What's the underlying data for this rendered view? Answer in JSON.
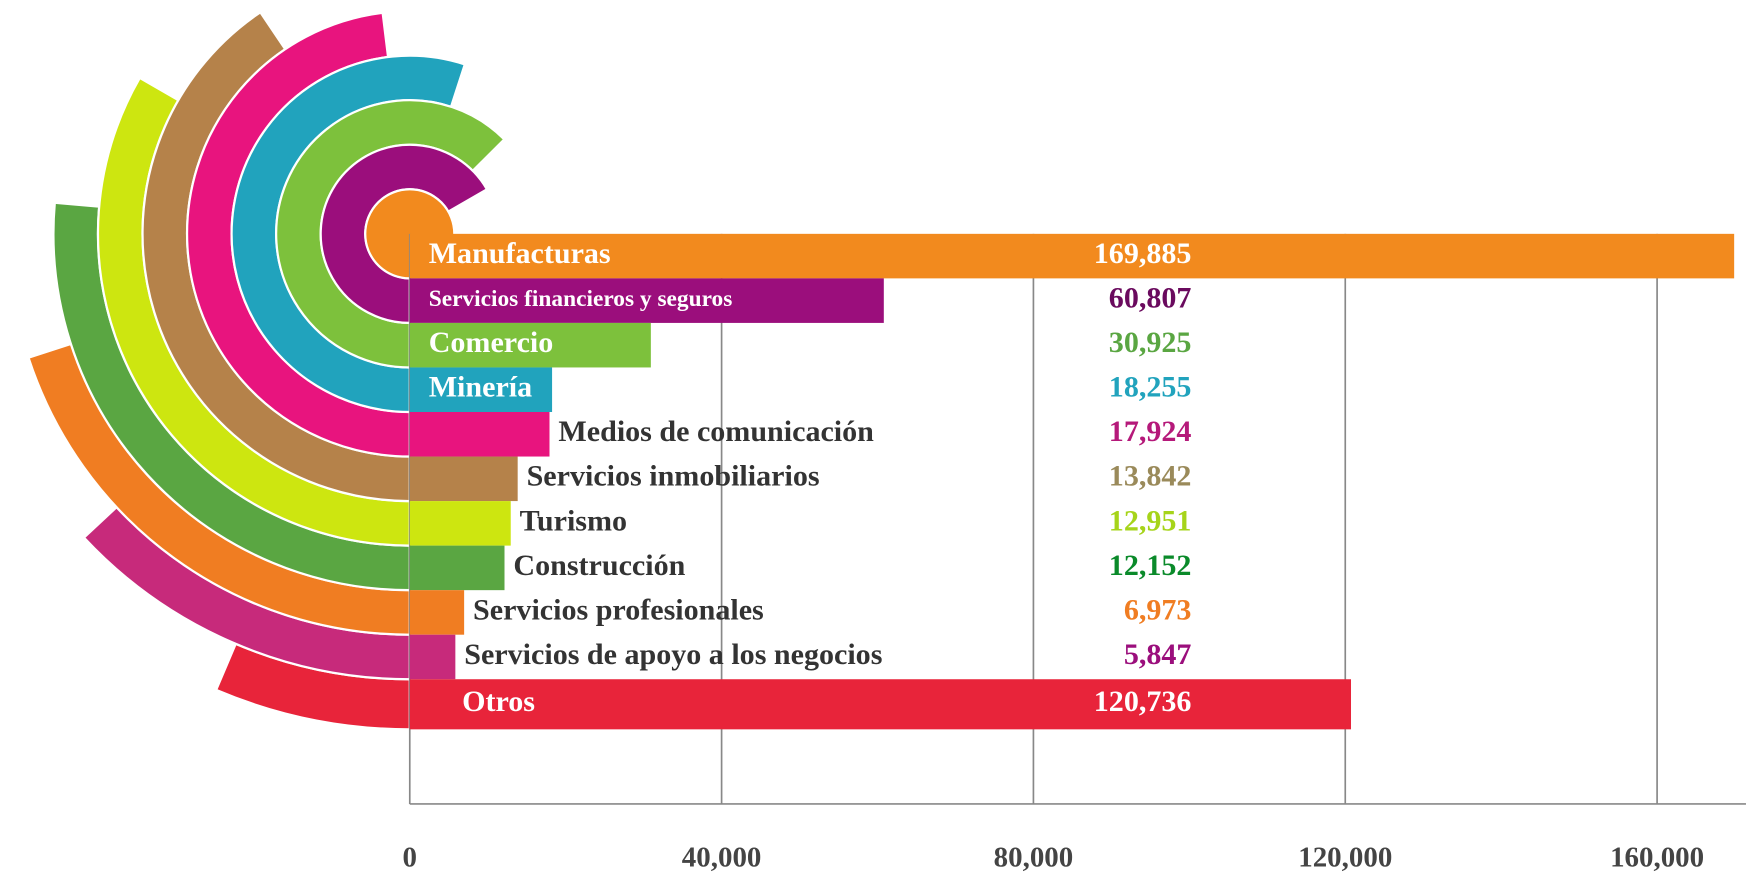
{
  "chart_data": {
    "type": "bar",
    "orientation": "horizontal",
    "categories": [
      "Manufacturas",
      "Servicios financieros y seguros",
      "Comercio",
      "Minería",
      "Medios de comunicación",
      "Servicios inmobiliarios",
      "Turismo",
      "Construcción",
      "Servicios profesionales",
      "Servicios de apoyo a los negocios",
      "Otros"
    ],
    "values": [
      169885,
      60807,
      30925,
      18255,
      17924,
      13842,
      12951,
      12152,
      6973,
      5847,
      120736
    ],
    "value_labels": [
      "169,885",
      "60,807",
      "30,925",
      "18,255",
      "17,924",
      "13,842",
      "12,951",
      "12,152",
      "6,973",
      "5,847",
      "120,736"
    ],
    "colors": [
      "#f28a1e",
      "#9b0e7c",
      "#7dc13c",
      "#21a3bd",
      "#e8147e",
      "#b5824a",
      "#cde610",
      "#5aa642",
      "#f07d22",
      "#c72a7b",
      "#e8243a"
    ],
    "category_label_colors": [
      "#ffffff",
      "#ffffff",
      "#ffffff",
      "#ffffff",
      "#333333",
      "#333333",
      "#333333",
      "#333333",
      "#333333",
      "#333333",
      "#ffffff"
    ],
    "value_label_colors": [
      "#ffffff",
      "#6a0a5e",
      "#5aa642",
      "#21a3bd",
      "#b5197a",
      "#9a8a5a",
      "#a6d41a",
      "#0a8a2a",
      "#f07d22",
      "#9b0e7c",
      "#ffffff"
    ],
    "xlim": [
      0,
      171400
    ],
    "xticks": [
      0,
      {
        "value": 40000,
        "label": "40,000"
      },
      {
        "value": 80000,
        "label": "80,000"
      },
      {
        "value": 120000,
        "label": "120,000"
      },
      {
        "value": 160000,
        "label": "160,000"
      }
    ],
    "grid": true
  }
}
